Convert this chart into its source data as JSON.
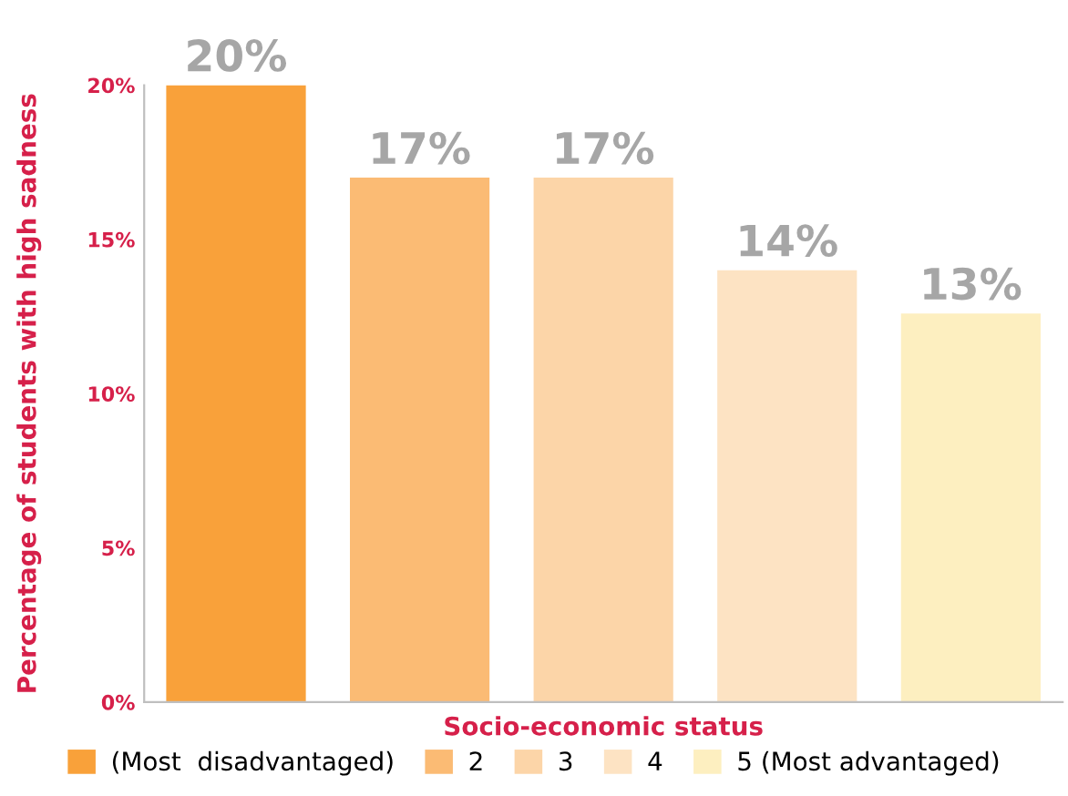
{
  "chart_data": {
    "type": "bar",
    "xlabel": "Socio-economic status",
    "ylabel": "Percentage of students with high sadness",
    "categories": [
      null,
      null,
      null,
      null,
      null
    ],
    "series": [
      {
        "name": "(Most  disadvantaged)",
        "color": "#f9a13a",
        "values": [
          20,
          null,
          null,
          null,
          null
        ],
        "value_labels": [
          "20%",
          null,
          null,
          null,
          null
        ]
      },
      {
        "name": "2",
        "color": "#fbbb74",
        "values": [
          null,
          17,
          null,
          null,
          null
        ],
        "value_labels": [
          null,
          "17%",
          null,
          null,
          null
        ]
      },
      {
        "name": "3",
        "color": "#fcd5a8",
        "values": [
          null,
          null,
          17,
          null,
          null
        ],
        "value_labels": [
          null,
          null,
          "17%",
          null,
          null
        ]
      },
      {
        "name": "4",
        "color": "#fde3c3",
        "values": [
          null,
          null,
          null,
          14,
          null
        ],
        "value_labels": [
          null,
          null,
          null,
          "14%",
          null
        ]
      },
      {
        "name": "5 (Most advantaged)",
        "color": "#fdefc0",
        "values": [
          null,
          null,
          null,
          null,
          12.6
        ],
        "value_labels": [
          null,
          null,
          null,
          null,
          "13%"
        ]
      }
    ],
    "ylim": [
      0,
      20
    ],
    "yticks": [
      {
        "value": 0,
        "label": "0%"
      },
      {
        "value": 5,
        "label": "5%"
      },
      {
        "value": 10,
        "label": "10%"
      },
      {
        "value": 15,
        "label": "15%"
      },
      {
        "value": 20,
        "label": "20%"
      }
    ],
    "grid": false,
    "legend": "bottom"
  }
}
